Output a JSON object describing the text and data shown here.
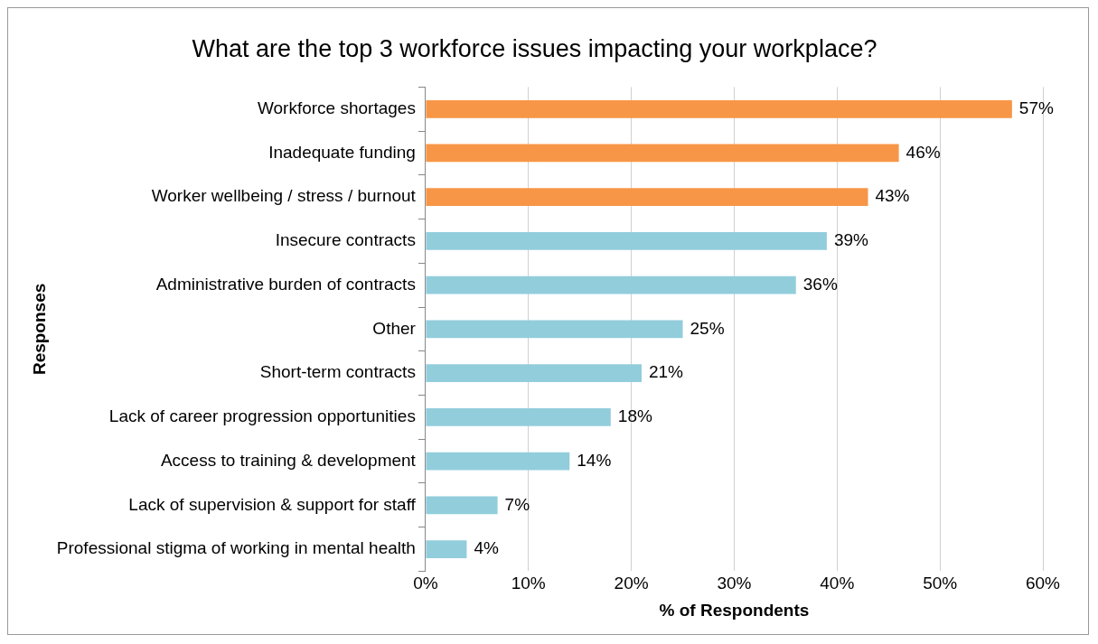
{
  "chart_data": {
    "type": "bar",
    "orientation": "horizontal",
    "title": "What are the top 3 workforce issues impacting your workplace?",
    "xlabel": "% of Respondents",
    "ylabel": "Responses",
    "categories": [
      "Workforce shortages",
      "Inadequate funding",
      "Worker wellbeing / stress / burnout",
      "Insecure contracts",
      "Administrative burden of contracts",
      "Other",
      "Short-term contracts",
      "Lack of career progression opportunities",
      "Access to training & development",
      "Lack of supervision & support for staff",
      "Professional stigma of working in mental health"
    ],
    "values": [
      57,
      46,
      43,
      39,
      36,
      25,
      21,
      18,
      14,
      7,
      4
    ],
    "value_labels": [
      "57%",
      "46%",
      "43%",
      "39%",
      "36%",
      "25%",
      "21%",
      "18%",
      "14%",
      "7%",
      "4%"
    ],
    "colors": [
      "#f79646",
      "#f79646",
      "#f79646",
      "#92cddc",
      "#92cddc",
      "#92cddc",
      "#92cddc",
      "#92cddc",
      "#92cddc",
      "#92cddc",
      "#92cddc"
    ],
    "xlim": [
      0,
      60
    ],
    "xticks": [
      {
        "value": 0,
        "label": "0%"
      },
      {
        "value": 10,
        "label": "10%"
      },
      {
        "value": 20,
        "label": "20%"
      },
      {
        "value": 30,
        "label": "30%"
      },
      {
        "value": 40,
        "label": "40%"
      },
      {
        "value": 50,
        "label": "50%"
      },
      {
        "value": 60,
        "label": "60%"
      }
    ],
    "grid": "x",
    "legend": false
  }
}
